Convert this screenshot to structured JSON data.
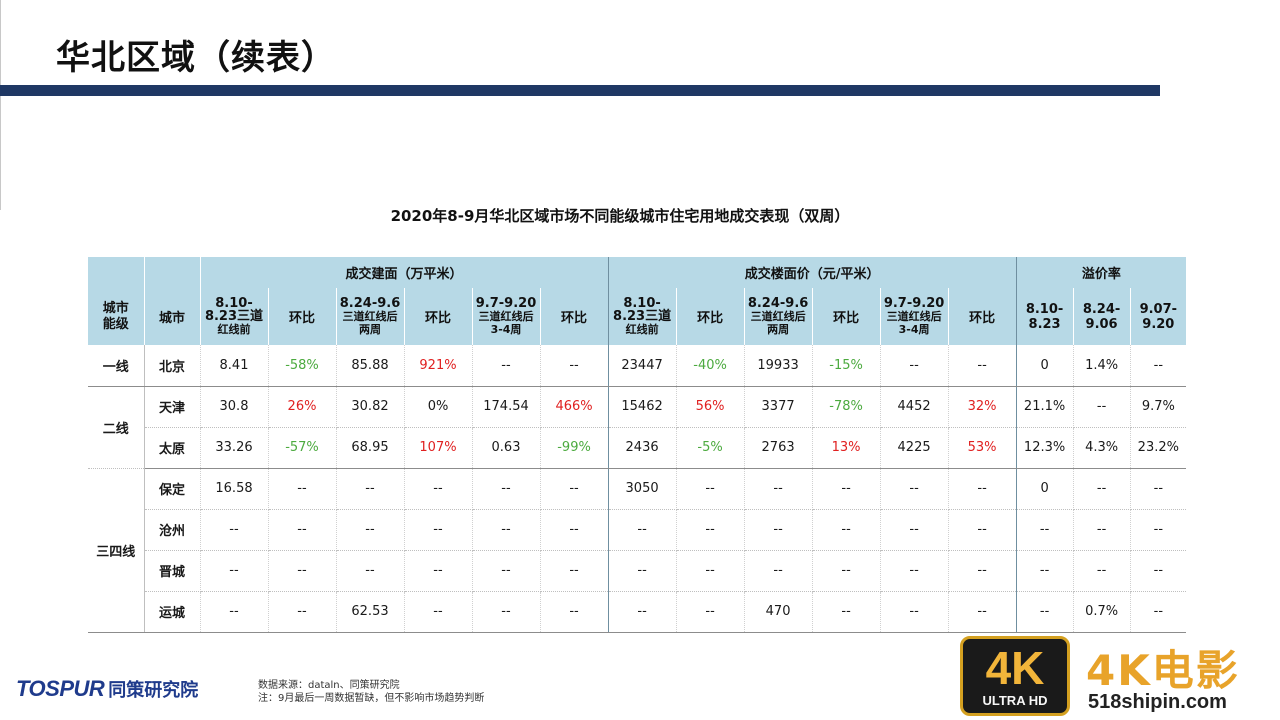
{
  "page": {
    "title": "华北区域（续表）",
    "caption": "2020年8-9月华北区域市场不同能级城市住宅用地成交表现（双周）"
  },
  "table": {
    "groups": {
      "area": "成交建面（万平米）",
      "price": "成交楼面价（元/平米）",
      "premium": "溢价率"
    },
    "col_tier": "城市能级",
    "col_city": "城市",
    "periods": [
      {
        "a": "8.10-",
        "b": "8.23三道",
        "c": "红线前"
      },
      {
        "a": "8.24-9.6",
        "b": "三道红线后",
        "c": "两周"
      },
      {
        "a": "9.7-9.20",
        "b": "三道红线后",
        "c": "3-4周"
      }
    ],
    "hb": "环比",
    "premium_periods": [
      {
        "a": "8.10-",
        "b": "8.23"
      },
      {
        "a": "8.24-",
        "b": "9.06"
      },
      {
        "a": "9.07-",
        "b": "9.20"
      }
    ],
    "tiers": {
      "t1": "一线",
      "t2": "二线",
      "t3": "三四线"
    },
    "rows": [
      {
        "city": "北京",
        "v": [
          "8.41",
          "-58%",
          "85.88",
          "921%",
          "--",
          "--",
          "23447",
          "-40%",
          "19933",
          "-15%",
          "--",
          "--",
          "0",
          "1.4%",
          "--"
        ]
      },
      {
        "city": "天津",
        "v": [
          "30.8",
          "26%",
          "30.82",
          "0%",
          "174.54",
          "466%",
          "15462",
          "56%",
          "3377",
          "-78%",
          "4452",
          "32%",
          "21.1%",
          "--",
          "9.7%"
        ]
      },
      {
        "city": "太原",
        "v": [
          "33.26",
          "-57%",
          "68.95",
          "107%",
          "0.63",
          "-99%",
          "2436",
          "-5%",
          "2763",
          "13%",
          "4225",
          "53%",
          "12.3%",
          "4.3%",
          "23.2%"
        ]
      },
      {
        "city": "保定",
        "v": [
          "16.58",
          "--",
          "--",
          "--",
          "--",
          "--",
          "3050",
          "--",
          "--",
          "--",
          "--",
          "--",
          "0",
          "--",
          "--"
        ]
      },
      {
        "city": "沧州",
        "v": [
          "--",
          "--",
          "--",
          "--",
          "--",
          "--",
          "--",
          "--",
          "--",
          "--",
          "--",
          "--",
          "--",
          "--",
          "--"
        ]
      },
      {
        "city": "晋城",
        "v": [
          "--",
          "--",
          "--",
          "--",
          "--",
          "--",
          "--",
          "--",
          "--",
          "--",
          "--",
          "--",
          "--",
          "--",
          "--"
        ]
      },
      {
        "city": "运城",
        "v": [
          "--",
          "--",
          "62.53",
          "--",
          "--",
          "--",
          "--",
          "--",
          "470",
          "--",
          "--",
          "--",
          "--",
          "0.7%",
          "--"
        ]
      }
    ]
  },
  "footer": {
    "brand": "TOSPUR",
    "brand_cn": "同策研究院",
    "source": "数据来源：dataln、同策研究院",
    "note": "注：9月最后一周数据暂缺，但不影响市场趋势判断"
  },
  "watermark": {
    "badge_big": "4K",
    "badge_small": "ULTRA HD",
    "title": "4K电影",
    "site": "518shipin.com"
  },
  "colors": {
    "increase": "#e02020",
    "decrease": "#4caa3f",
    "header_bg": "#b7d9e6",
    "title_bar": "#1f3864"
  }
}
